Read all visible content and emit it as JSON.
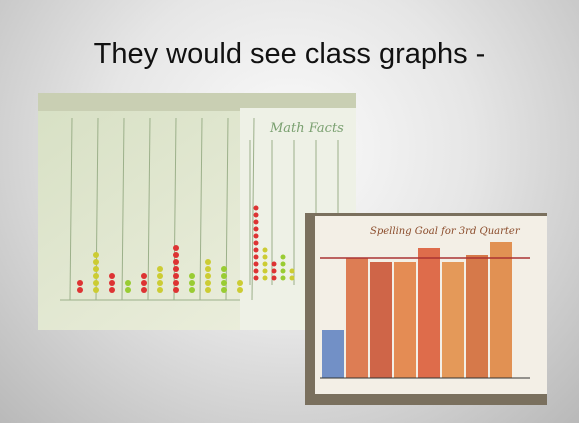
{
  "slide": {
    "title": "They would see class graphs -",
    "photos": [
      {
        "caption": "Math Facts"
      },
      {
        "caption": "Spelling Goal for 3rd Quarter"
      }
    ]
  }
}
